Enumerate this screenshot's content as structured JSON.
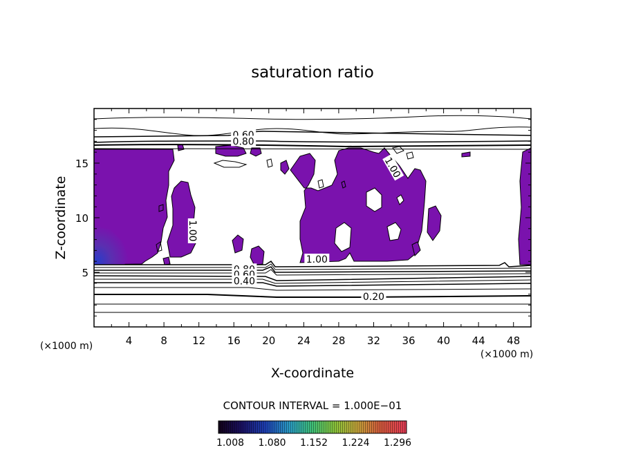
{
  "chart_data": {
    "type": "heatmap",
    "title": "saturation ratio",
    "xlabel": "X-coordinate",
    "ylabel": "Z-coordinate",
    "x_unit": "(×1000 m)",
    "y_unit": "(×1000 m)",
    "xlim": [
      0,
      50
    ],
    "ylim": [
      0,
      20
    ],
    "x_ticks": [
      4,
      8,
      12,
      16,
      20,
      24,
      28,
      32,
      36,
      40,
      44,
      48
    ],
    "y_ticks": [
      5,
      10,
      15
    ],
    "contour_interval_label": "CONTOUR INTERVAL = 1.000E−01",
    "contour_labels": [
      {
        "text": "0.60",
        "x": 17.1,
        "y": 17.6
      },
      {
        "text": "0.80",
        "x": 17.1,
        "y": 17.0
      },
      {
        "text": "1.00",
        "x": 34.2,
        "y": 14.6
      },
      {
        "text": "1.00",
        "x": 11.3,
        "y": 8.8
      },
      {
        "text": "1.00",
        "x": 25.5,
        "y": 6.2
      },
      {
        "text": "0.80",
        "x": 17.2,
        "y": 5.3
      },
      {
        "text": "0.60",
        "x": 17.2,
        "y": 4.8
      },
      {
        "text": "0.40",
        "x": 17.2,
        "y": 4.2
      },
      {
        "text": "0.20",
        "x": 32.0,
        "y": 2.8
      }
    ],
    "colorbar": {
      "min": 1.008,
      "max": 1.296,
      "tick_labels": [
        "1.008",
        "1.080",
        "1.152",
        "1.224",
        "1.296"
      ]
    }
  }
}
